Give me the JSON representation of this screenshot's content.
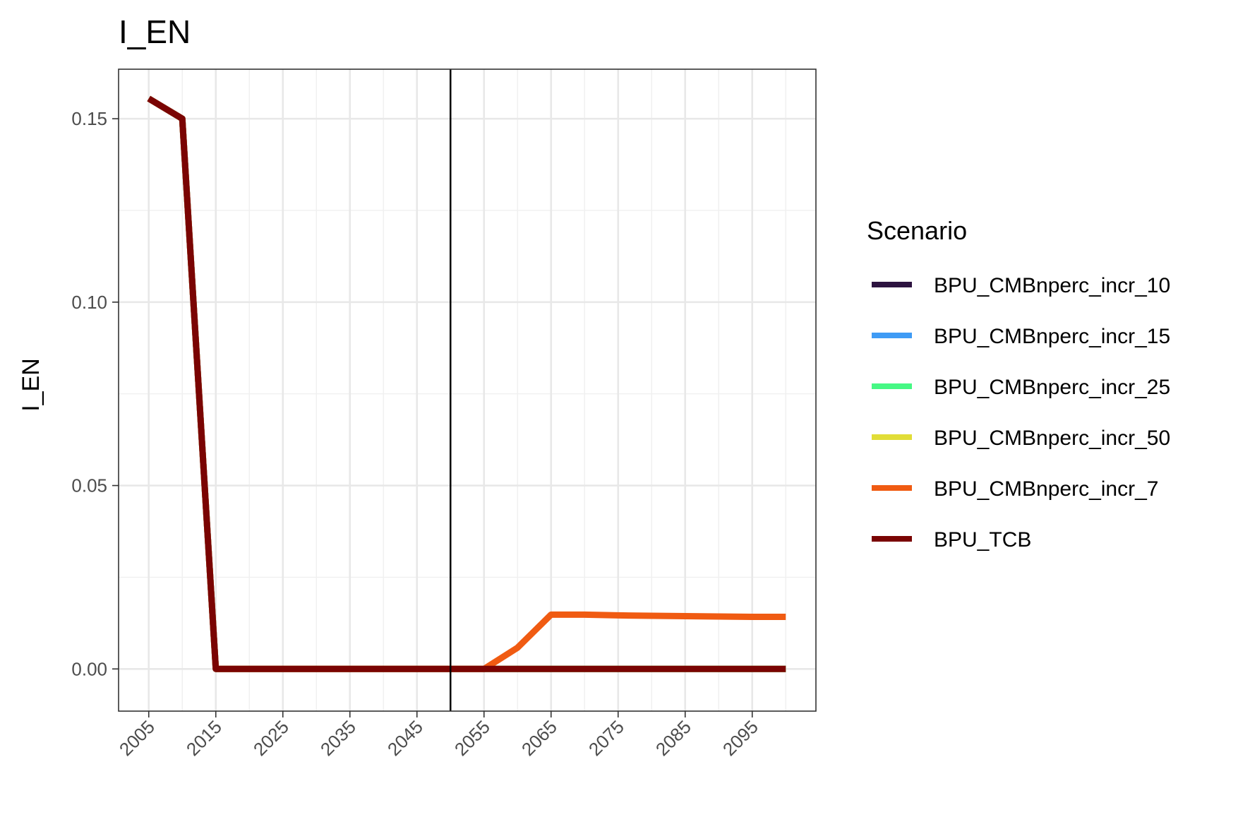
{
  "chart_data": {
    "type": "line",
    "title": "I_EN",
    "xlabel": "",
    "ylabel": "I_EN",
    "xlim": [
      2000.5,
      2104.5
    ],
    "ylim": [
      -0.0115,
      0.1635
    ],
    "x_major_ticks": [
      2005,
      2015,
      2025,
      2035,
      2045,
      2055,
      2065,
      2075,
      2085,
      2095
    ],
    "x_minor_ticks": [
      2010,
      2020,
      2030,
      2040,
      2050,
      2060,
      2070,
      2080,
      2090,
      2100
    ],
    "y_major_ticks": [
      0.0,
      0.05,
      0.1,
      0.15
    ],
    "y_tick_labels": [
      "0.00",
      "0.05",
      "0.10",
      "0.15"
    ],
    "y_minor_ticks": [
      0.025,
      0.075,
      0.125
    ],
    "x_tick_labels": [
      "2005",
      "2015",
      "2025",
      "2035",
      "2045",
      "2055",
      "2065",
      "2075",
      "2085",
      "2095"
    ],
    "vline": 2050,
    "grid": true,
    "legend_title": "Scenario",
    "legend_position": "right",
    "x": [
      2005,
      2010,
      2015,
      2020,
      2025,
      2030,
      2035,
      2040,
      2045,
      2050,
      2055,
      2060,
      2065,
      2070,
      2075,
      2080,
      2085,
      2090,
      2095,
      2100
    ],
    "series": [
      {
        "name": "BPU_CMBnperc_incr_10",
        "color": "#2d1340",
        "values": [
          0.1555,
          0.15,
          0,
          0,
          0,
          0,
          0,
          0,
          0,
          0,
          0,
          0,
          0,
          0,
          0,
          0,
          0,
          0,
          0,
          0
        ]
      },
      {
        "name": "BPU_CMBnperc_incr_15",
        "color": "#3f9bf5",
        "values": [
          0.1555,
          0.15,
          0,
          0,
          0,
          0,
          0,
          0,
          0,
          0,
          0,
          0,
          0,
          0,
          0,
          0,
          0,
          0,
          0,
          0
        ]
      },
      {
        "name": "BPU_CMBnperc_incr_25",
        "color": "#46f884",
        "values": [
          0.1555,
          0.15,
          0,
          0,
          0,
          0,
          0,
          0,
          0,
          0,
          0,
          0,
          0,
          0,
          0,
          0,
          0,
          0,
          0,
          0
        ]
      },
      {
        "name": "BPU_CMBnperc_incr_50",
        "color": "#e1dd37",
        "values": [
          0.1555,
          0.15,
          0,
          0,
          0,
          0,
          0,
          0,
          0,
          0,
          0,
          0,
          0,
          0,
          0,
          0,
          0,
          0,
          0,
          0
        ]
      },
      {
        "name": "BPU_CMBnperc_incr_7",
        "color": "#f05b12",
        "values": [
          0.1555,
          0.15,
          0,
          0,
          0,
          0,
          0,
          0,
          0,
          0,
          0,
          0.0058,
          0.0148,
          0.0148,
          0.0146,
          0.0145,
          0.0144,
          0.0143,
          0.0142,
          0.0142
        ]
      },
      {
        "name": "BPU_TCB",
        "color": "#7a0403",
        "values": [
          0.1555,
          0.15,
          0,
          0,
          0,
          0,
          0,
          0,
          0,
          0,
          0,
          0,
          0,
          0,
          0,
          0,
          0,
          0,
          0,
          0
        ]
      }
    ]
  }
}
